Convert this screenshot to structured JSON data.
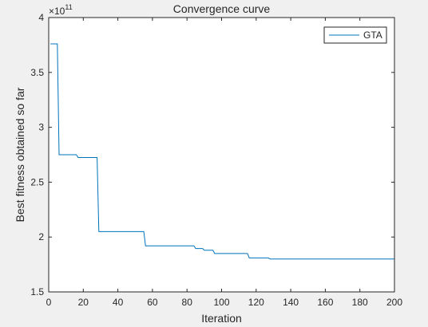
{
  "chart_data": {
    "type": "line",
    "title": "Convergence curve",
    "xlabel": "Iteration",
    "ylabel": "Best fitness obtained so far",
    "y_exponent": {
      "base": "×10",
      "power": "11"
    },
    "xlim": [
      0,
      200
    ],
    "ylim": [
      1.5,
      4
    ],
    "x_ticks": [
      "0",
      "20",
      "40",
      "60",
      "80",
      "100",
      "120",
      "140",
      "160",
      "180",
      "200"
    ],
    "y_ticks": [
      "1.5",
      "2",
      "2.5",
      "3",
      "3.5",
      "4"
    ],
    "grid": false,
    "legend": {
      "position": "top-right",
      "entries": [
        "GTA"
      ]
    },
    "series": [
      {
        "name": "GTA",
        "color": "#0072BD",
        "x": [
          1,
          5,
          6,
          16,
          17,
          28,
          29,
          55,
          56,
          84,
          85,
          89,
          90,
          95,
          96,
          115,
          116,
          127,
          128,
          200
        ],
        "y": [
          3.76,
          3.76,
          2.75,
          2.75,
          2.725,
          2.725,
          2.05,
          2.05,
          1.92,
          1.92,
          1.895,
          1.895,
          1.88,
          1.88,
          1.85,
          1.85,
          1.81,
          1.81,
          1.8,
          1.8
        ]
      }
    ]
  }
}
